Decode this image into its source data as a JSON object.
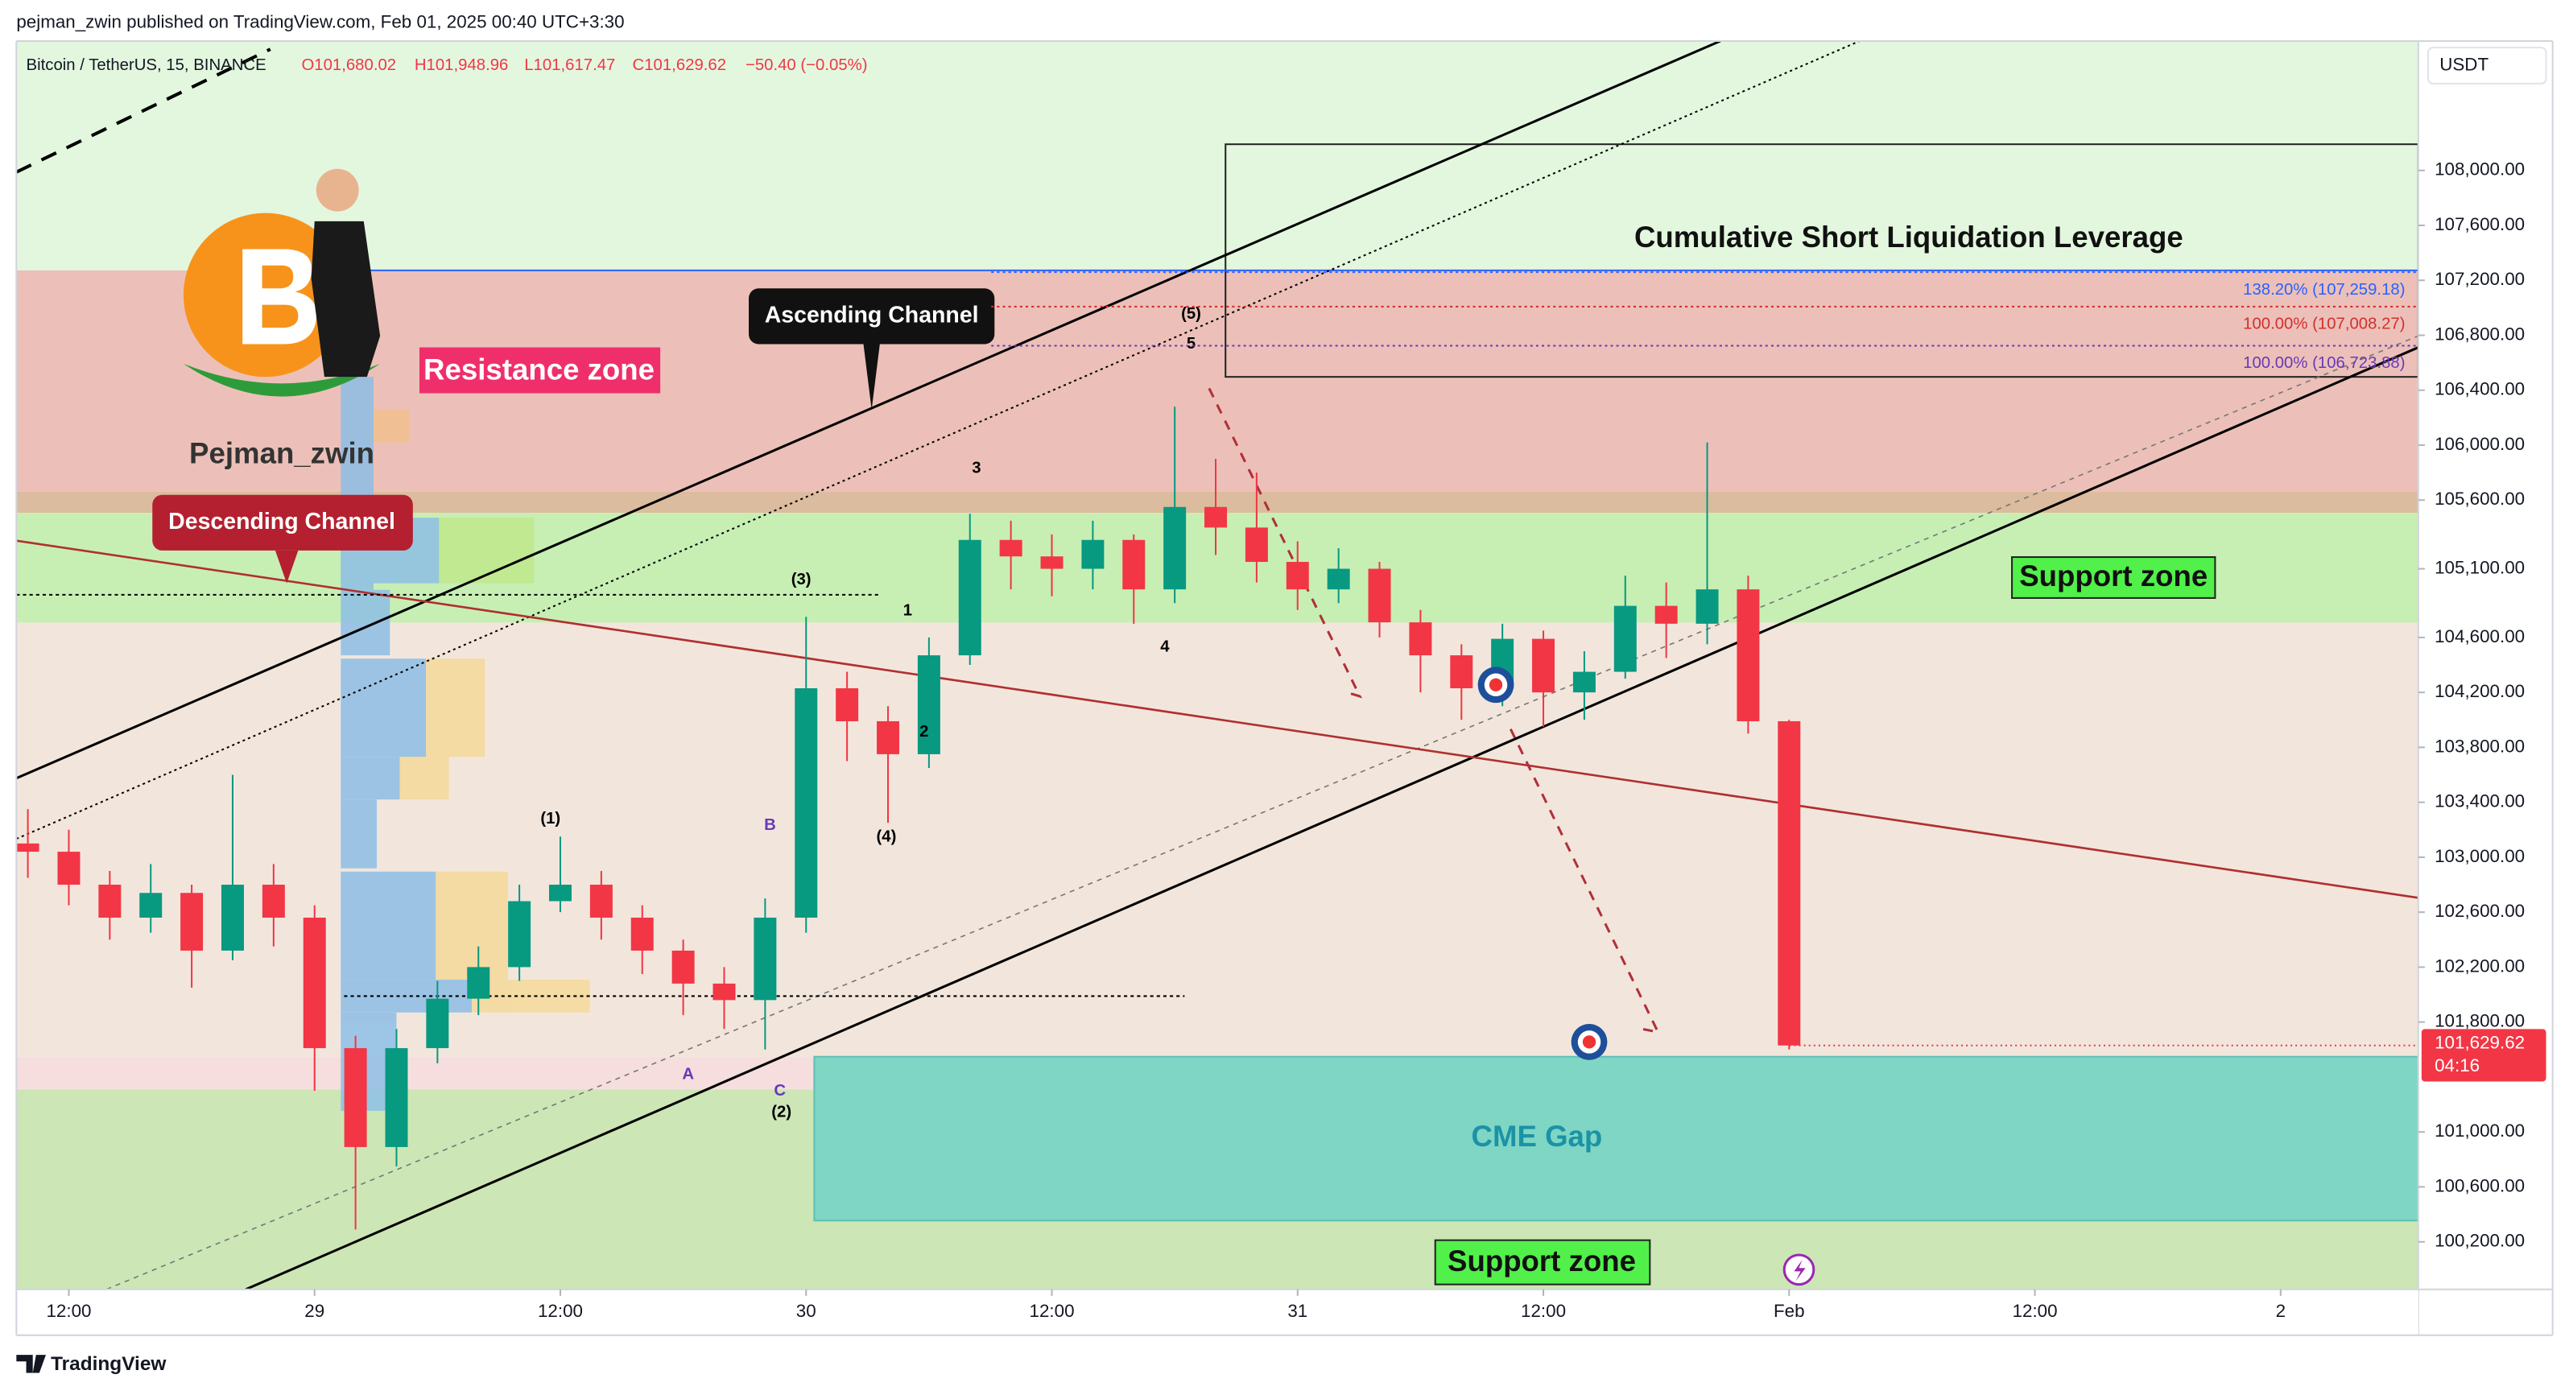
{
  "header": {
    "publisher": "pejman_zwin published on TradingView.com, Feb 01, 2025 00:40 UTC+3:30"
  },
  "chart_data": {
    "type": "candlestick",
    "symbol": "Bitcoin / TetherUS, 15, BINANCE",
    "ohlc_labels": [
      "O101,680.02",
      "H101,948.96",
      "L101,617.47",
      "C101,629.62"
    ],
    "change": "−50.40 (−0.05%)",
    "currency": "USDT",
    "up_color": "#089981",
    "down_color": "#f23645",
    "x": [
      10,
      12,
      14,
      16,
      18,
      20,
      22,
      24,
      26,
      28,
      30,
      32,
      34,
      36,
      38,
      40,
      42,
      44,
      46,
      48,
      50,
      52,
      54,
      56,
      58,
      60,
      62,
      64,
      66,
      68,
      70,
      72,
      74,
      76,
      78,
      80,
      82,
      84,
      86,
      88,
      90,
      92,
      94,
      96
    ],
    "open": [
      103100,
      103040,
      102800,
      102560,
      102740,
      102320,
      102800,
      102560,
      101610,
      100890,
      101610,
      101970,
      102200,
      102680,
      102800,
      102560,
      102320,
      102080,
      101960,
      102560,
      104230,
      103990,
      103750,
      104470,
      105310,
      105190,
      105100,
      105310,
      104950,
      105550,
      105400,
      105150,
      104950,
      105100,
      104710,
      104470,
      104230,
      104590,
      104200,
      104350,
      104830,
      104700,
      104950,
      103990
    ],
    "high": [
      103350,
      103200,
      102900,
      102950,
      102800,
      103600,
      102950,
      102650,
      101700,
      101750,
      102100,
      102350,
      102800,
      103150,
      102900,
      102650,
      102400,
      102200,
      102700,
      104750,
      104350,
      104100,
      104600,
      105500,
      105450,
      105350,
      105450,
      105350,
      106280,
      105900,
      105800,
      105300,
      105250,
      105150,
      104800,
      104550,
      104700,
      104650,
      104500,
      105050,
      105000,
      106020,
      105050,
      104000
    ],
    "low": [
      102850,
      102650,
      102400,
      102450,
      102050,
      102250,
      102350,
      101300,
      100290,
      100750,
      101500,
      101850,
      102100,
      102600,
      102400,
      102150,
      101850,
      101750,
      101600,
      102450,
      103700,
      103250,
      103650,
      104400,
      104950,
      104900,
      104950,
      104700,
      104850,
      105200,
      105000,
      104800,
      104850,
      104600,
      104200,
      104000,
      104100,
      103950,
      104000,
      104300,
      104450,
      104550,
      103900,
      101600
    ],
    "close": [
      103040,
      102800,
      102560,
      102740,
      102320,
      102800,
      102560,
      101610,
      100890,
      101610,
      101970,
      102200,
      102680,
      102800,
      102560,
      102320,
      102080,
      101960,
      102560,
      104230,
      103990,
      103750,
      104470,
      105310,
      105190,
      105100,
      105310,
      104950,
      105550,
      105400,
      105150,
      104950,
      105100,
      104710,
      104470,
      104230,
      104590,
      104200,
      104350,
      104830,
      104700,
      104950,
      103990,
      101629.62
    ],
    "xlim": [
      9.44,
      126.72
    ],
    "xticks": [
      {
        "value": 12,
        "label": "12:00"
      },
      {
        "value": 24,
        "label": "29"
      },
      {
        "value": 36,
        "label": "12:00"
      },
      {
        "value": 48,
        "label": "30"
      },
      {
        "value": 60,
        "label": "12:00"
      },
      {
        "value": 72,
        "label": "31"
      },
      {
        "value": 84,
        "label": "12:00"
      },
      {
        "value": 96,
        "label": "Feb"
      },
      {
        "value": 108,
        "label": "12:00"
      },
      {
        "value": 120,
        "label": "2"
      }
    ],
    "ylim": [
      99854,
      108942
    ],
    "yticks": [
      {
        "value": 100200,
        "label": "100,200.00"
      },
      {
        "value": 100600,
        "label": "100,600.00"
      },
      {
        "value": 101000,
        "label": "101,000.00"
      },
      {
        "value": 101800,
        "label": "101,800.00"
      },
      {
        "value": 102200,
        "label": "102,200.00"
      },
      {
        "value": 102600,
        "label": "102,600.00"
      },
      {
        "value": 103000,
        "label": "103,000.00"
      },
      {
        "value": 103400,
        "label": "103,400.00"
      },
      {
        "value": 103800,
        "label": "103,800.00"
      },
      {
        "value": 104200,
        "label": "104,200.00"
      },
      {
        "value": 104600,
        "label": "104,600.00"
      },
      {
        "value": 105100,
        "label": "105,100.00"
      },
      {
        "value": 105600,
        "label": "105,600.00"
      },
      {
        "value": 106000,
        "label": "106,000.00"
      },
      {
        "value": 106400,
        "label": "106,400.00"
      },
      {
        "value": 106800,
        "label": "106,800.00"
      },
      {
        "value": 107200,
        "label": "107,200.00"
      },
      {
        "value": 107600,
        "label": "107,600.00"
      },
      {
        "value": 108000,
        "label": "108,000.00"
      }
    ],
    "last_price": {
      "value": 101629.62,
      "label": "101,629.62",
      "countdown": "04:16"
    },
    "fib_levels": [
      {
        "value": 107259.18,
        "label": "138.20% (107,259.18)",
        "color": "#2962ff"
      },
      {
        "value": 107008.27,
        "label": "100.00% (107,008.27)",
        "color": "#d32f2f"
      },
      {
        "value": 106723.88,
        "label": "100.00% (106,723.88)",
        "color": "#673ab7"
      }
    ],
    "annotations": {
      "resistance": "Resistance zone",
      "ascending": "Ascending Channel",
      "descending": "Descending Channel",
      "liquidation": "Cumulative Short Liquidation Leverage",
      "support_right": "Support zone",
      "support_bottom": "Support zone",
      "cme": "CME Gap"
    },
    "waves": [
      "(1)",
      "(2)",
      "(3)",
      "(4)",
      "(5)",
      "1",
      "2",
      "3",
      "4",
      "5",
      "A",
      "B",
      "C"
    ]
  },
  "brand": "Pejman_zwin",
  "footer": "TradingView"
}
